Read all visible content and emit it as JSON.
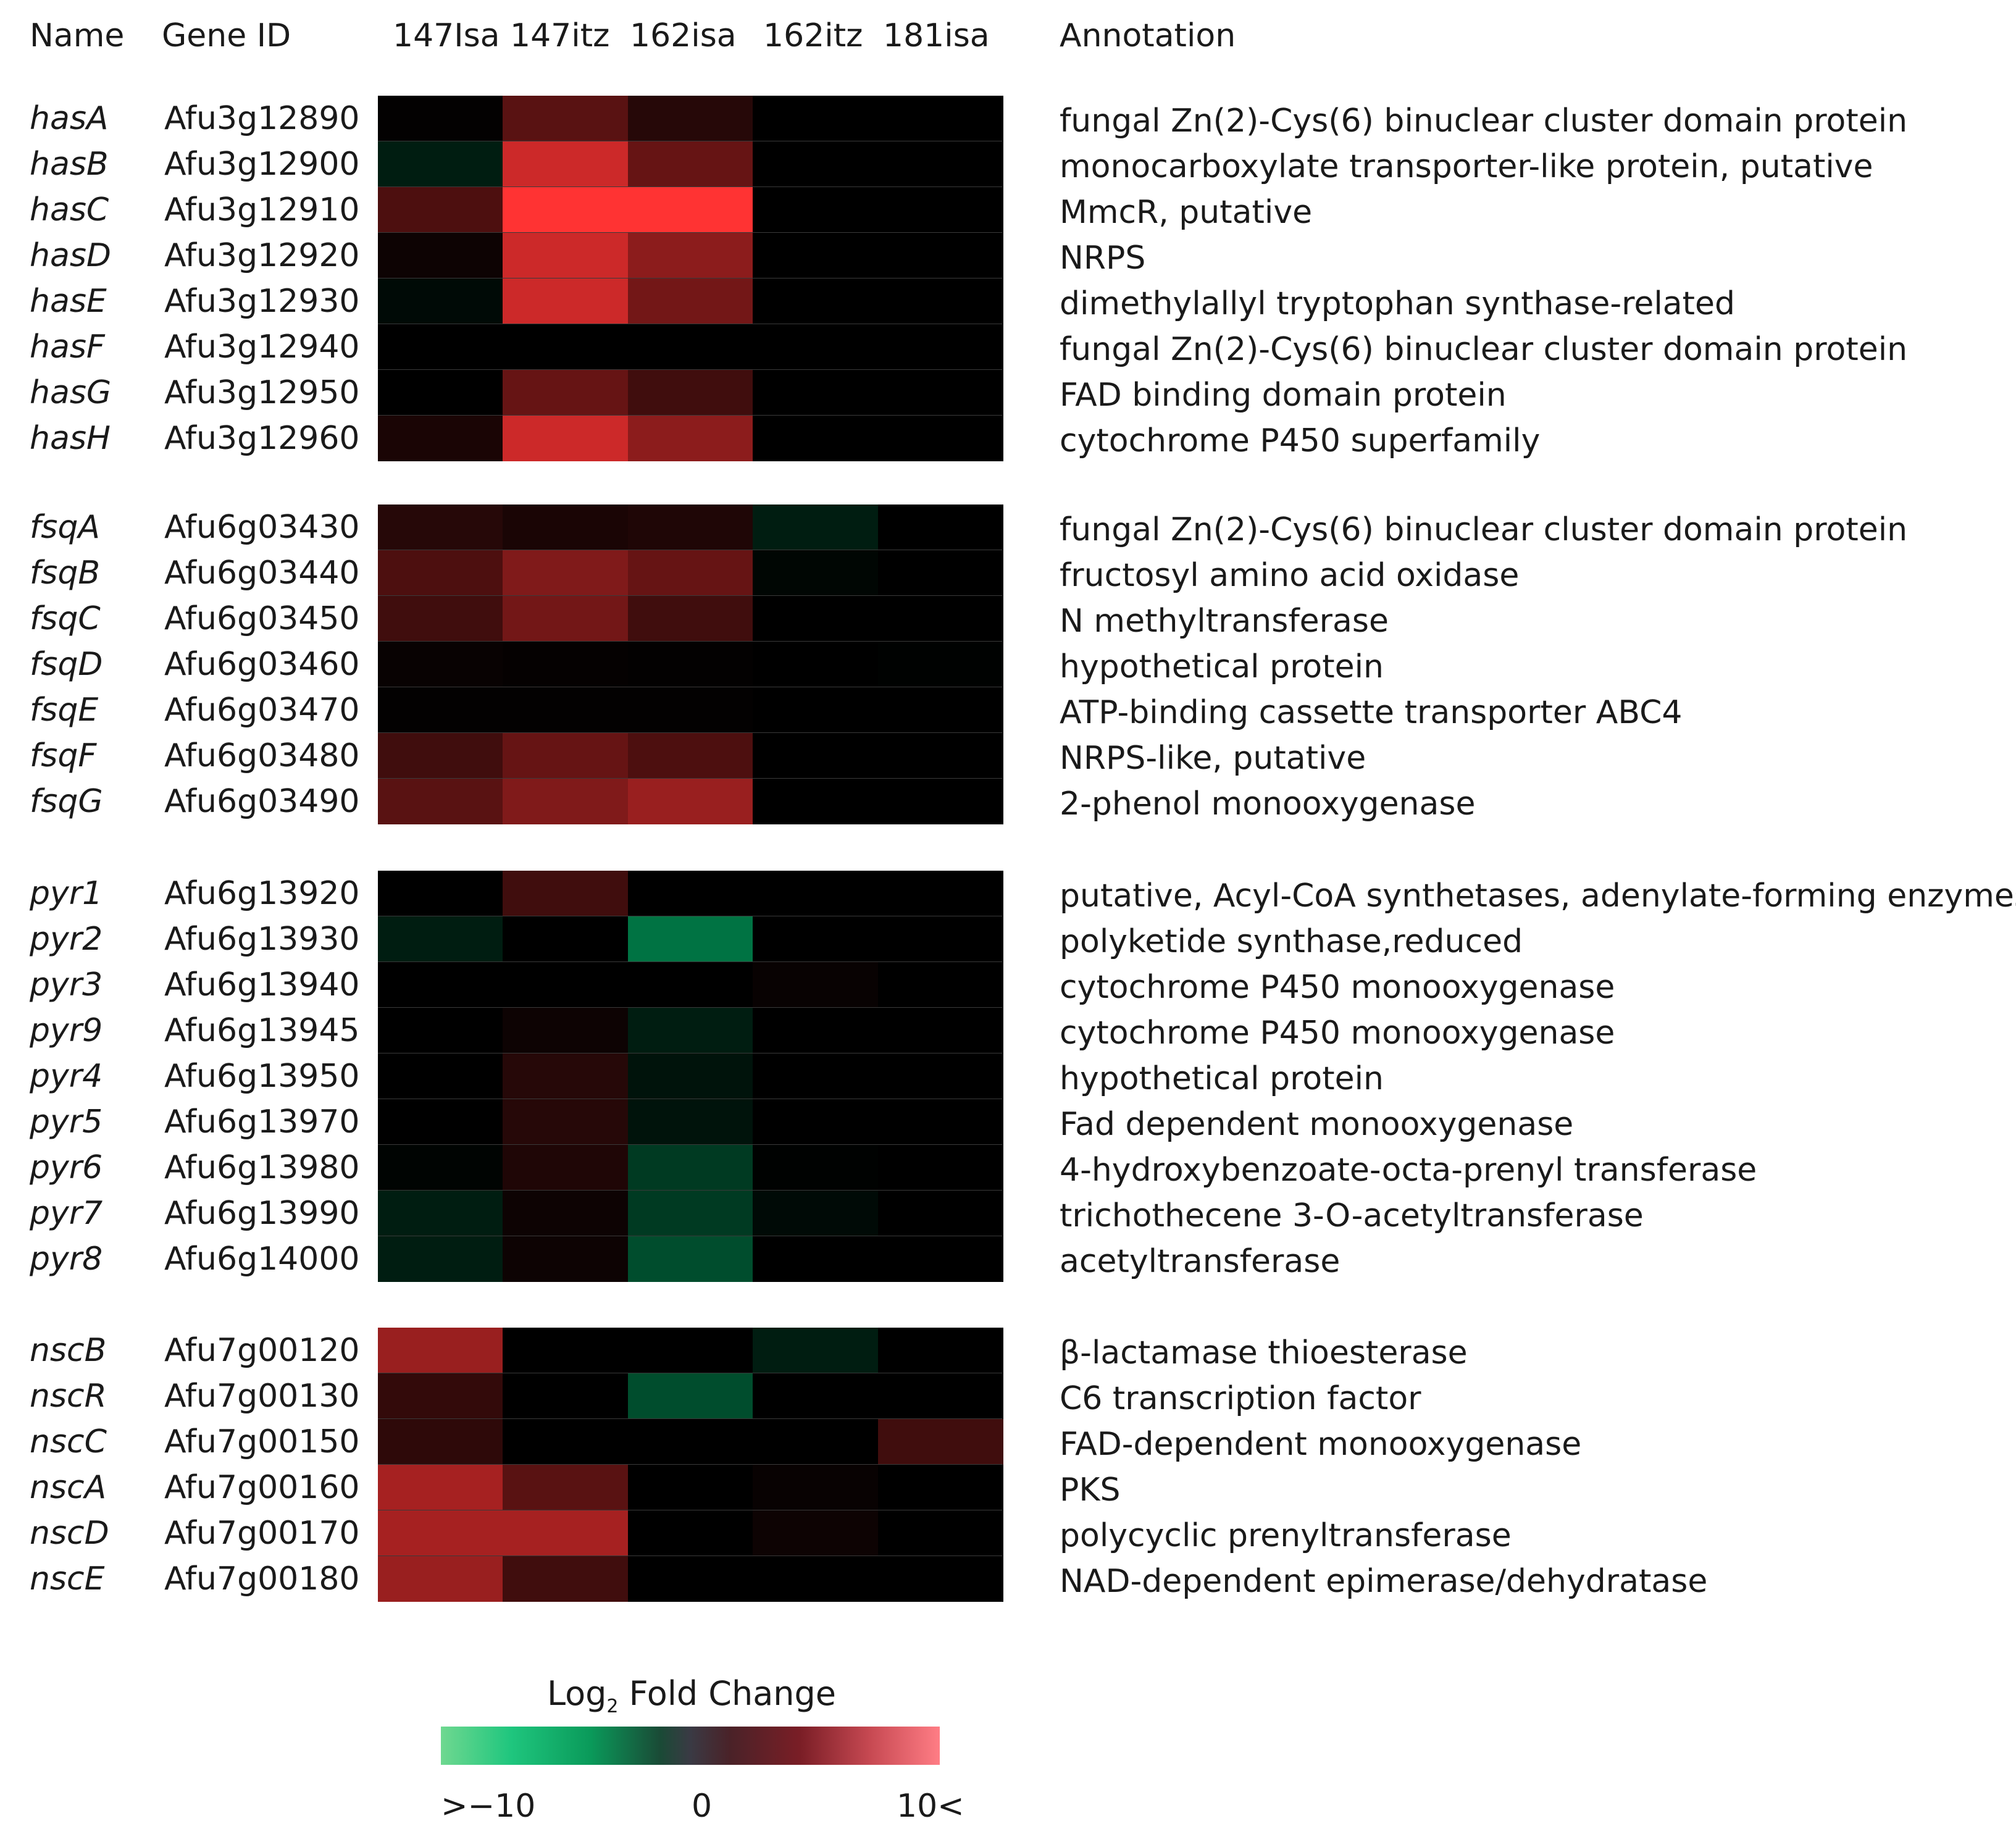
{
  "headers": {
    "name": "Name",
    "gene_id": "Gene ID",
    "annotation": "Annotation"
  },
  "chart_data": {
    "type": "heatmap",
    "columns": [
      "147Isa",
      "147itz",
      "162isa",
      "162itz",
      "181isa"
    ],
    "color_scale": {
      "low_color": "#00c070",
      "mid_color": "#000000",
      "high_color": "#ff3333",
      "min": -10,
      "max": 10
    },
    "groups": [
      {
        "rows": [
          {
            "name": "hasA",
            "gene_id": "Afu3g12890",
            "annotation": "fungal Zn(2)-Cys(6) binuclear cluster domain protein",
            "values": [
              0.1,
              3.5,
              1.5,
              0,
              0
            ]
          },
          {
            "name": "hasB",
            "gene_id": "Afu3g12900",
            "annotation": "monocarboxylate transporter-like protein, putative",
            "values": [
              -1.5,
              8,
              4,
              0,
              0
            ]
          },
          {
            "name": "hasC",
            "gene_id": "Afu3g12910",
            "annotation": "MmcR, putative",
            "values": [
              3,
              10,
              10,
              0,
              0
            ]
          },
          {
            "name": "hasD",
            "gene_id": "Afu3g12920",
            "annotation": "NRPS",
            "values": [
              0.5,
              8,
              5.5,
              0,
              0
            ]
          },
          {
            "name": "hasE",
            "gene_id": "Afu3g12930",
            "annotation": "dimethylallyl tryptophan synthase-related",
            "values": [
              -0.5,
              8,
              4.5,
              0,
              0
            ]
          },
          {
            "name": "hasF",
            "gene_id": "Afu3g12940",
            "annotation": "fungal Zn(2)-Cys(6) binuclear cluster domain protein",
            "values": [
              0,
              0,
              0,
              0,
              0
            ]
          },
          {
            "name": "hasG",
            "gene_id": "Afu3g12950",
            "annotation": "FAD binding domain protein",
            "values": [
              0,
              4,
              2.5,
              0,
              0
            ]
          },
          {
            "name": "hasH",
            "gene_id": "Afu3g12960",
            "annotation": "cytochrome P450 superfamily",
            "values": [
              1,
              8,
              5.5,
              0,
              0
            ]
          }
        ]
      },
      {
        "rows": [
          {
            "name": "fsqA",
            "gene_id": "Afu6g03430",
            "annotation": "fungal Zn(2)-Cys(6) binuclear cluster domain protein",
            "values": [
              1.5,
              1,
              1.2,
              -1.5,
              0
            ]
          },
          {
            "name": "fsqB",
            "gene_id": "Afu6g03440",
            "annotation": "fructosyl amino acid oxidase",
            "values": [
              3,
              5,
              4,
              -0.3,
              0
            ]
          },
          {
            "name": "fsqC",
            "gene_id": "Afu6g03450",
            "annotation": "N methyltransferase",
            "values": [
              2.5,
              4.5,
              2.5,
              0,
              0
            ]
          },
          {
            "name": "fsqD",
            "gene_id": "Afu6g03460",
            "annotation": "hypothetical protein",
            "values": [
              0.3,
              0.2,
              0.1,
              0,
              -0.1
            ]
          },
          {
            "name": "fsqE",
            "gene_id": "Afu6g03470",
            "annotation": "ATP-binding cassette transporter ABC4",
            "values": [
              0.1,
              0.1,
              0.1,
              0,
              0
            ]
          },
          {
            "name": "fsqF",
            "gene_id": "Afu6g03480",
            "annotation": "NRPS-like, putative",
            "values": [
              2.5,
              4,
              3,
              0,
              0
            ]
          },
          {
            "name": "fsqG",
            "gene_id": "Afu6g03490",
            "annotation": "2-phenol monooxygenase",
            "values": [
              3.5,
              5,
              6,
              0,
              0
            ]
          }
        ]
      },
      {
        "rows": [
          {
            "name": "pyr1",
            "gene_id": "Afu6g13920",
            "annotation": "putative, Acyl-CoA synthetases, adenylate-forming enzymes",
            "values": [
              0,
              2.5,
              0,
              0,
              0
            ]
          },
          {
            "name": "pyr2",
            "gene_id": "Afu6g13930",
            "annotation": "polyketide synthase,reduced",
            "values": [
              -1.5,
              0,
              -6,
              0,
              0
            ]
          },
          {
            "name": "pyr3",
            "gene_id": "Afu6g13940",
            "annotation": "cytochrome P450 monooxygenase",
            "values": [
              0,
              0,
              0,
              0.3,
              0
            ]
          },
          {
            "name": "pyr9",
            "gene_id": "Afu6g13945",
            "annotation": "cytochrome P450 monooxygenase",
            "values": [
              0,
              0.5,
              -1.5,
              0,
              0
            ]
          },
          {
            "name": "pyr4",
            "gene_id": "Afu6g13950",
            "annotation": "hypothetical protein",
            "values": [
              0,
              1.5,
              -1,
              0,
              0
            ]
          },
          {
            "name": "pyr5",
            "gene_id": "Afu6g13970",
            "annotation": "Fad dependent monooxygenase",
            "values": [
              0,
              1.5,
              -1,
              0,
              0
            ]
          },
          {
            "name": "pyr6",
            "gene_id": "Afu6g13980",
            "annotation": "4-hydroxybenzoate-octa-prenyl transferase",
            "values": [
              -0.2,
              1.2,
              -3,
              -0.1,
              0
            ]
          },
          {
            "name": "pyr7",
            "gene_id": "Afu6g13990",
            "annotation": "trichothecene 3-O-acetyltransferase",
            "values": [
              -1.5,
              0.5,
              -3,
              -0.5,
              0
            ]
          },
          {
            "name": "pyr8",
            "gene_id": "Afu6g14000",
            "annotation": "acetyltransferase",
            "values": [
              -1.5,
              0.5,
              -4,
              0,
              0
            ]
          }
        ]
      },
      {
        "rows": [
          {
            "name": "nscB",
            "gene_id": "Afu7g00120",
            "annotation": "β-lactamase thioesterase",
            "values": [
              6,
              0,
              0,
              -1.5,
              0
            ]
          },
          {
            "name": "nscR",
            "gene_id": "Afu7g00130",
            "annotation": "C6 transcription factor",
            "values": [
              2,
              0,
              -4,
              0,
              0
            ]
          },
          {
            "name": "nscC",
            "gene_id": "Afu7g00150",
            "annotation": "FAD-dependent monooxygenase",
            "values": [
              1.8,
              0,
              0,
              0,
              2.5
            ]
          },
          {
            "name": "nscA",
            "gene_id": "Afu7g00160",
            "annotation": "PKS",
            "values": [
              6.5,
              3.5,
              0,
              0.3,
              0
            ]
          },
          {
            "name": "nscD",
            "gene_id": "Afu7g00170",
            "annotation": "polycyclic prenyltransferase",
            "values": [
              6.5,
              6.5,
              0,
              0.5,
              0
            ]
          },
          {
            "name": "nscE",
            "gene_id": "Afu7g00180",
            "annotation": "NAD-dependent epimerase/dehydratase",
            "values": [
              6,
              2.5,
              0,
              0,
              0
            ]
          }
        ]
      }
    ],
    "legend": {
      "title_main": "Log",
      "title_sub": "2",
      "title_rest": " Fold Change",
      "tick_low": ">−10",
      "tick_mid": "0",
      "tick_high": "10<"
    }
  }
}
